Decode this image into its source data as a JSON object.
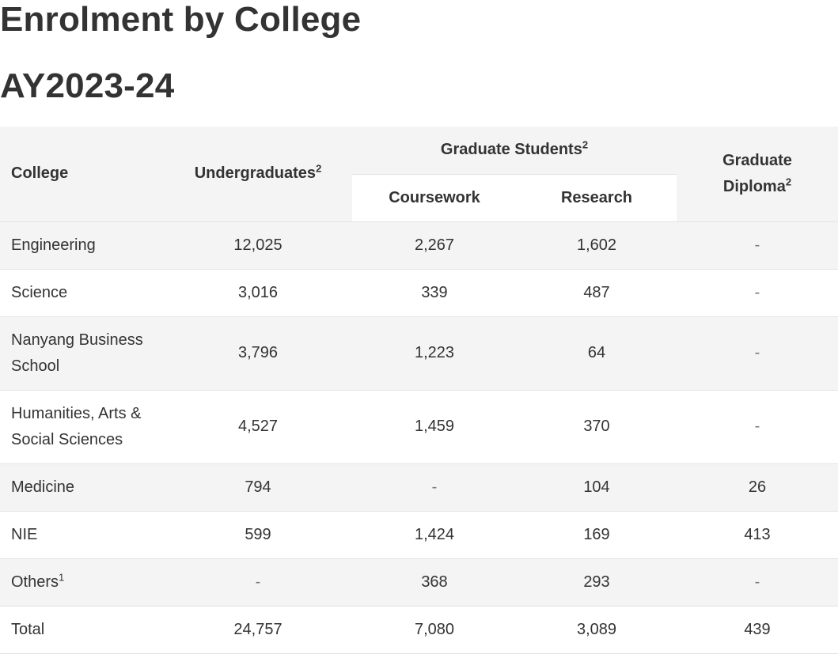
{
  "title_line1": "Enrolment by College",
  "title_line2": "AY2023-24",
  "table": {
    "headers": {
      "college": "College",
      "undergraduates": "Undergraduates",
      "undergraduates_sup": "2",
      "graduate_students": "Graduate Students",
      "graduate_students_sup": "2",
      "coursework": "Coursework",
      "research": "Research",
      "graduate_diploma_line1": "Graduate",
      "graduate_diploma_line2": "Diploma",
      "graduate_diploma_sup": "2"
    },
    "rows": [
      {
        "college": "Engineering",
        "undergraduates": "12,025",
        "coursework": "2,267",
        "research": "1,602",
        "graduate_diploma": "-"
      },
      {
        "college": "Science",
        "undergraduates": "3,016",
        "coursework": "339",
        "research": "487",
        "graduate_diploma": "-"
      },
      {
        "college_line1": "Nanyang Business",
        "college_line2": "School",
        "undergraduates": "3,796",
        "coursework": "1,223",
        "research": "64",
        "graduate_diploma": "-"
      },
      {
        "college_line1": "Humanities, Arts &",
        "college_line2": "Social Sciences",
        "undergraduates": "4,527",
        "coursework": "1,459",
        "research": "370",
        "graduate_diploma": "-"
      },
      {
        "college": "Medicine",
        "undergraduates": "794",
        "coursework": "-",
        "research": "104",
        "graduate_diploma": "26"
      },
      {
        "college": "NIE",
        "undergraduates": "599",
        "coursework": "1,424",
        "research": "169",
        "graduate_diploma": "413"
      },
      {
        "college": "Others",
        "college_sup": "1",
        "undergraduates": "-",
        "coursework": "368",
        "research": "293",
        "graduate_diploma": "-"
      },
      {
        "college": "Total",
        "undergraduates": "24,757",
        "coursework": "7,080",
        "research": "3,089",
        "graduate_diploma": "439"
      }
    ]
  }
}
